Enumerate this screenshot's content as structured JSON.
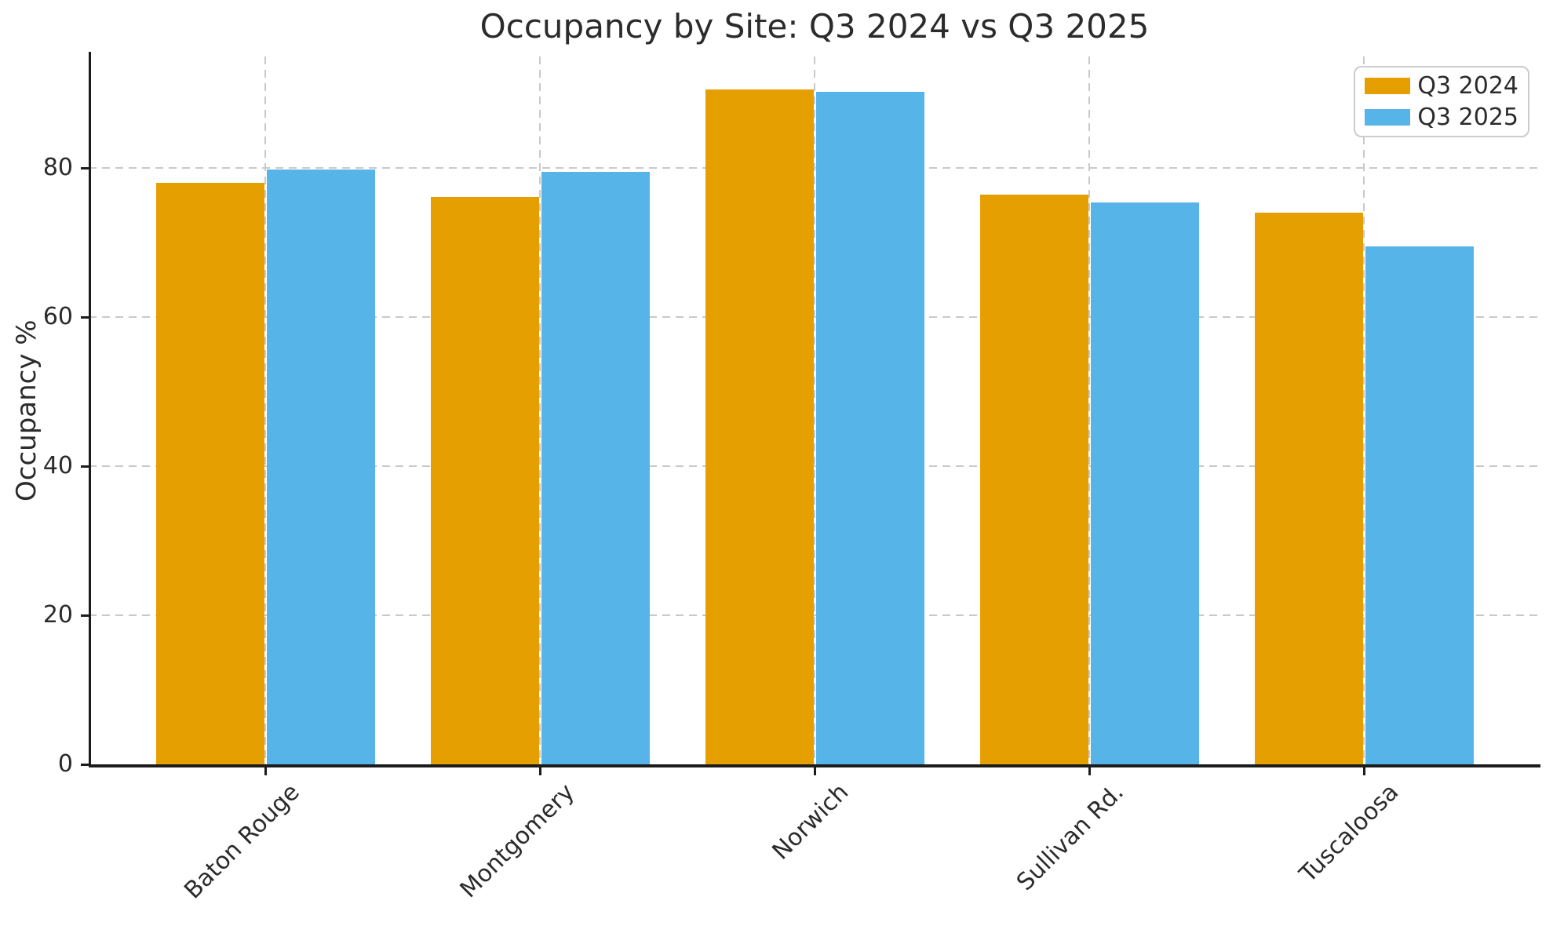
{
  "chart_data": {
    "type": "bar",
    "title": "Occupancy by Site: Q3 2024 vs Q3 2025",
    "ylabel": "Occupancy %",
    "xlabel": "",
    "categories": [
      "Baton Rouge",
      "Montgomery",
      "Norwich",
      "Sullivan Rd.",
      "Tuscaloosa"
    ],
    "series": [
      {
        "name": "Q3 2024",
        "color": "#E69F00",
        "values": [
          78.1,
          76.2,
          90.6,
          76.5,
          74.0
        ]
      },
      {
        "name": "Q3 2025",
        "color": "#56B4E9",
        "values": [
          79.8,
          79.5,
          90.3,
          75.4,
          69.5
        ]
      }
    ],
    "ylim": [
      0,
      95
    ],
    "yticks": [
      0,
      20,
      40,
      60,
      80
    ],
    "grid": true,
    "grid_style": "dashed",
    "legend": {
      "position": "upper right",
      "entries": [
        "Q3 2024",
        "Q3 2025"
      ]
    }
  },
  "style": {
    "text_color": "#2b2b2b",
    "spine_color": "#1c1c1c",
    "grid_color": "#c9c9c9",
    "legend_border_color": "#cccccc",
    "background": "#ffffff"
  }
}
